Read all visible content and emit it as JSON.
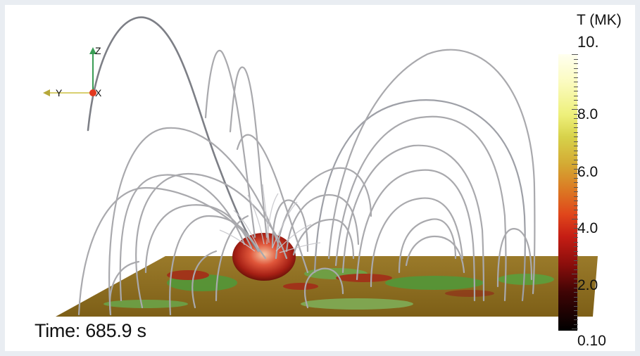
{
  "axes_triad": {
    "z_label": "Z",
    "y_label": "Y",
    "x_label": "X"
  },
  "time_label": "Time: 685.9 s",
  "colorbar": {
    "title": "T (MK)",
    "tick_labels": [
      "10.",
      "8.0",
      "6.0",
      "4.0",
      "2.0",
      "0.10"
    ],
    "range": [
      0.1,
      10.0
    ],
    "colors": {
      "max": "#fffff0",
      "mid": "#dc7422",
      "low": "#8b0e0c",
      "min": "#000000"
    }
  },
  "surface_colors": {
    "base": "#8a6d1d",
    "green": "#4f9a3a",
    "red": "#a42a18",
    "hot": "#f2b38a"
  }
}
